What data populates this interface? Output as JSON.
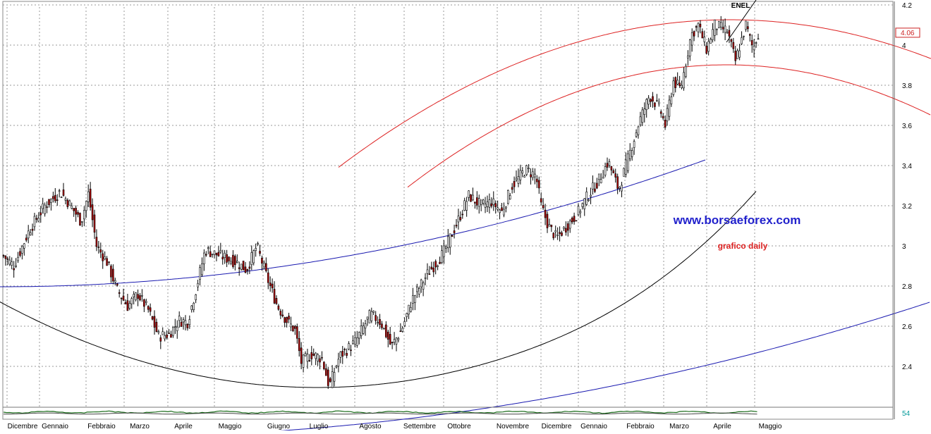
{
  "chart_data": {
    "type": "candlestick",
    "ticker": "ENEL",
    "last_price_label": "4.06",
    "watermark": "www.borsaeforex.com",
    "subtitle": "grafico daily",
    "volume_label": "54",
    "y_ticks": [
      "2.4",
      "2.6",
      "2.8",
      "3",
      "3.2",
      "3.4",
      "3.6",
      "3.8",
      "4",
      "4.2"
    ],
    "y_tick_values": [
      2.4,
      2.6,
      2.8,
      3.0,
      3.2,
      3.4,
      3.6,
      3.8,
      4.0,
      4.2
    ],
    "ylim": [
      2.24,
      4.22
    ],
    "x_months": [
      "Dicembre",
      "Gennaio",
      "Febbraio",
      "Marzo",
      "Aprile",
      "Maggio",
      "Giugno",
      "Luglio",
      "Agosto",
      "Settembre",
      "Ottobre",
      "Novembre",
      "Dicembre",
      "Gennaio",
      "Febbraio",
      "Marzo",
      "Aprile",
      "Maggio"
    ],
    "price_path": [
      {
        "d": 0,
        "p": 2.95
      },
      {
        "d": 10,
        "p": 2.9
      },
      {
        "d": 25,
        "p": 3.08
      },
      {
        "d": 40,
        "p": 3.2
      },
      {
        "d": 55,
        "p": 3.27
      },
      {
        "d": 65,
        "p": 3.2
      },
      {
        "d": 75,
        "p": 3.12
      },
      {
        "d": 82,
        "p": 3.26
      },
      {
        "d": 90,
        "p": 3.0
      },
      {
        "d": 100,
        "p": 2.92
      },
      {
        "d": 110,
        "p": 2.78
      },
      {
        "d": 120,
        "p": 2.7
      },
      {
        "d": 130,
        "p": 2.76
      },
      {
        "d": 140,
        "p": 2.68
      },
      {
        "d": 150,
        "p": 2.55
      },
      {
        "d": 160,
        "p": 2.56
      },
      {
        "d": 170,
        "p": 2.63
      },
      {
        "d": 178,
        "p": 2.62
      },
      {
        "d": 186,
        "p": 2.78
      },
      {
        "d": 195,
        "p": 2.98
      },
      {
        "d": 210,
        "p": 2.95
      },
      {
        "d": 225,
        "p": 2.92
      },
      {
        "d": 235,
        "p": 2.88
      },
      {
        "d": 245,
        "p": 3.0
      },
      {
        "d": 255,
        "p": 2.84
      },
      {
        "d": 265,
        "p": 2.7
      },
      {
        "d": 275,
        "p": 2.62
      },
      {
        "d": 282,
        "p": 2.58
      },
      {
        "d": 288,
        "p": 2.42
      },
      {
        "d": 298,
        "p": 2.46
      },
      {
        "d": 308,
        "p": 2.44
      },
      {
        "d": 315,
        "p": 2.3
      },
      {
        "d": 325,
        "p": 2.45
      },
      {
        "d": 340,
        "p": 2.52
      },
      {
        "d": 355,
        "p": 2.66
      },
      {
        "d": 365,
        "p": 2.62
      },
      {
        "d": 375,
        "p": 2.5
      },
      {
        "d": 385,
        "p": 2.58
      },
      {
        "d": 395,
        "p": 2.73
      },
      {
        "d": 410,
        "p": 2.86
      },
      {
        "d": 425,
        "p": 2.96
      },
      {
        "d": 440,
        "p": 3.13
      },
      {
        "d": 450,
        "p": 3.25
      },
      {
        "d": 462,
        "p": 3.2
      },
      {
        "d": 472,
        "p": 3.22
      },
      {
        "d": 482,
        "p": 3.17
      },
      {
        "d": 492,
        "p": 3.3
      },
      {
        "d": 505,
        "p": 3.38
      },
      {
        "d": 515,
        "p": 3.35
      },
      {
        "d": 520,
        "p": 3.2
      },
      {
        "d": 527,
        "p": 3.1
      },
      {
        "d": 535,
        "p": 3.04
      },
      {
        "d": 545,
        "p": 3.1
      },
      {
        "d": 555,
        "p": 3.16
      },
      {
        "d": 565,
        "p": 3.25
      },
      {
        "d": 575,
        "p": 3.32
      },
      {
        "d": 585,
        "p": 3.42
      },
      {
        "d": 595,
        "p": 3.28
      },
      {
        "d": 605,
        "p": 3.45
      },
      {
        "d": 615,
        "p": 3.62
      },
      {
        "d": 625,
        "p": 3.75
      },
      {
        "d": 635,
        "p": 3.68
      },
      {
        "d": 640,
        "p": 3.6
      },
      {
        "d": 648,
        "p": 3.82
      },
      {
        "d": 655,
        "p": 3.78
      },
      {
        "d": 665,
        "p": 4.05
      },
      {
        "d": 672,
        "p": 4.1
      },
      {
        "d": 680,
        "p": 3.98
      },
      {
        "d": 688,
        "p": 4.1
      },
      {
        "d": 700,
        "p": 4.07
      },
      {
        "d": 708,
        "p": 3.92
      },
      {
        "d": 718,
        "p": 4.1
      },
      {
        "d": 725,
        "p": 3.98
      },
      {
        "d": 730,
        "p": 4.06
      }
    ],
    "total_days": 730,
    "grid": true,
    "overlay_curves": [
      "red",
      "blue",
      "black"
    ]
  }
}
